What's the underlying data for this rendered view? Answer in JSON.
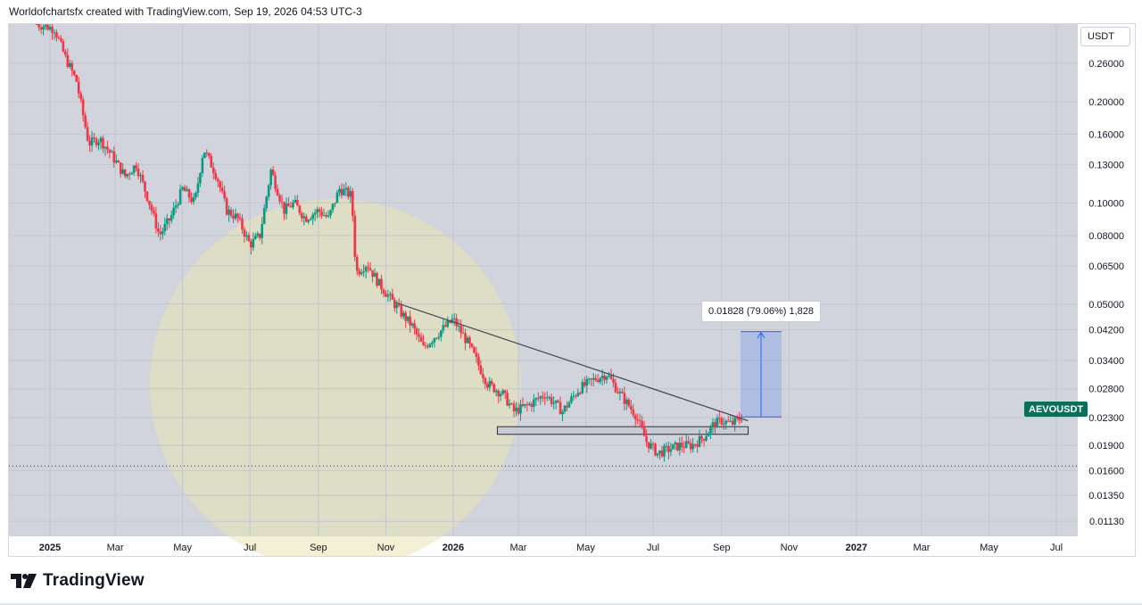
{
  "header": {
    "caption": "Worldofchartsfx created with TradingView.com, Sep 19, 2026 04:53 UTC-3"
  },
  "footer": {
    "brand": "TradingView"
  },
  "badges": {
    "currency": "USDT",
    "symbol": "AEVOUSDT"
  },
  "measurement": {
    "label": "0.01828 (79.06%) 1,828",
    "from": 0.0231,
    "to": 0.0414
  },
  "colors": {
    "background": "#d1d4dc",
    "up": "#089981",
    "down": "#f23645",
    "trendline": "#434651",
    "measure": "#2962ff",
    "symbol_badge": "#0b6e5a"
  },
  "chart_data": {
    "type": "candlestick",
    "title": "",
    "symbol": "AEVOUSDT",
    "y_scale": "log",
    "ylim": [
      0.0102,
      0.34
    ],
    "y_ticks": [
      "0.26000",
      "0.20000",
      "0.16000",
      "0.13000",
      "0.10000",
      "0.08000",
      "0.06500",
      "0.05000",
      "0.04200",
      "0.03400",
      "0.02800",
      "0.02300",
      "0.01900",
      "0.01600",
      "0.01350",
      "0.01130"
    ],
    "x_ticks": [
      {
        "label": "2025",
        "date": "2025-01-01",
        "bold": true
      },
      {
        "label": "Mar",
        "date": "2025-03-01",
        "bold": false
      },
      {
        "label": "May",
        "date": "2025-05-01",
        "bold": false
      },
      {
        "label": "Jul",
        "date": "2025-07-01",
        "bold": false
      },
      {
        "label": "Sep",
        "date": "2025-09-01",
        "bold": false
      },
      {
        "label": "Nov",
        "date": "2025-11-01",
        "bold": false
      },
      {
        "label": "2026",
        "date": "2026-01-01",
        "bold": true
      },
      {
        "label": "Mar",
        "date": "2026-03-01",
        "bold": false
      },
      {
        "label": "May",
        "date": "2026-05-01",
        "bold": false
      },
      {
        "label": "Jul",
        "date": "2026-07-01",
        "bold": false
      },
      {
        "label": "Sep",
        "date": "2026-09-01",
        "bold": false
      },
      {
        "label": "Nov",
        "date": "2026-11-01",
        "bold": false
      },
      {
        "label": "2027",
        "date": "2027-01-01",
        "bold": true
      },
      {
        "label": "Mar",
        "date": "2027-03-01",
        "bold": false
      },
      {
        "label": "May",
        "date": "2027-05-01",
        "bold": false
      },
      {
        "label": "Jul",
        "date": "2027-07-01",
        "bold": false
      }
    ],
    "price_path": [
      [
        "2024-12-20",
        0.34
      ],
      [
        "2025-01-05",
        0.33
      ],
      [
        "2025-01-15",
        0.27
      ],
      [
        "2025-01-25",
        0.23
      ],
      [
        "2025-02-05",
        0.15
      ],
      [
        "2025-02-15",
        0.155
      ],
      [
        "2025-02-25",
        0.14
      ],
      [
        "2025-03-10",
        0.12
      ],
      [
        "2025-03-20",
        0.13
      ],
      [
        "2025-04-01",
        0.1
      ],
      [
        "2025-04-10",
        0.08
      ],
      [
        "2025-04-20",
        0.09
      ],
      [
        "2025-05-01",
        0.11
      ],
      [
        "2025-05-12",
        0.1
      ],
      [
        "2025-05-20",
        0.145
      ],
      [
        "2025-06-01",
        0.12
      ],
      [
        "2025-06-10",
        0.095
      ],
      [
        "2025-06-20",
        0.09
      ],
      [
        "2025-07-01",
        0.075
      ],
      [
        "2025-07-10",
        0.08
      ],
      [
        "2025-07-20",
        0.125
      ],
      [
        "2025-08-01",
        0.095
      ],
      [
        "2025-08-10",
        0.1
      ],
      [
        "2025-08-20",
        0.09
      ],
      [
        "2025-09-01",
        0.095
      ],
      [
        "2025-09-10",
        0.09
      ],
      [
        "2025-09-20",
        0.11
      ],
      [
        "2025-10-01",
        0.105
      ],
      [
        "2025-10-05",
        0.062
      ],
      [
        "2025-10-15",
        0.066
      ],
      [
        "2025-10-25",
        0.058
      ],
      [
        "2025-11-05",
        0.052
      ],
      [
        "2025-11-15",
        0.047
      ],
      [
        "2025-11-25",
        0.043
      ],
      [
        "2025-12-05",
        0.037
      ],
      [
        "2025-12-15",
        0.04
      ],
      [
        "2026-01-01",
        0.045
      ],
      [
        "2026-01-15",
        0.038
      ],
      [
        "2026-02-01",
        0.029
      ],
      [
        "2026-02-15",
        0.027
      ],
      [
        "2026-02-25",
        0.024
      ],
      [
        "2026-03-10",
        0.025
      ],
      [
        "2026-03-25",
        0.027
      ],
      [
        "2026-04-10",
        0.024
      ],
      [
        "2026-04-25",
        0.028
      ],
      [
        "2026-05-10",
        0.03
      ],
      [
        "2026-05-20",
        0.031
      ],
      [
        "2026-06-01",
        0.027
      ],
      [
        "2026-06-15",
        0.0235
      ],
      [
        "2026-06-25",
        0.0195
      ],
      [
        "2026-07-05",
        0.018
      ],
      [
        "2026-07-15",
        0.0185
      ],
      [
        "2026-07-25",
        0.019
      ],
      [
        "2026-08-05",
        0.019
      ],
      [
        "2026-08-15",
        0.02
      ],
      [
        "2026-08-25",
        0.022
      ],
      [
        "2026-09-01",
        0.0225
      ],
      [
        "2026-09-10",
        0.022
      ],
      [
        "2026-09-19",
        0.023
      ]
    ],
    "trendline": {
      "from": [
        "2025-11-10",
        0.0505
      ],
      "to": [
        "2026-09-25",
        0.0225
      ]
    },
    "support_zone": {
      "from": "2026-02-10",
      "to": "2026-09-25",
      "low": 0.0205,
      "high": 0.0216
    },
    "dotted_level": 0.0165
  }
}
